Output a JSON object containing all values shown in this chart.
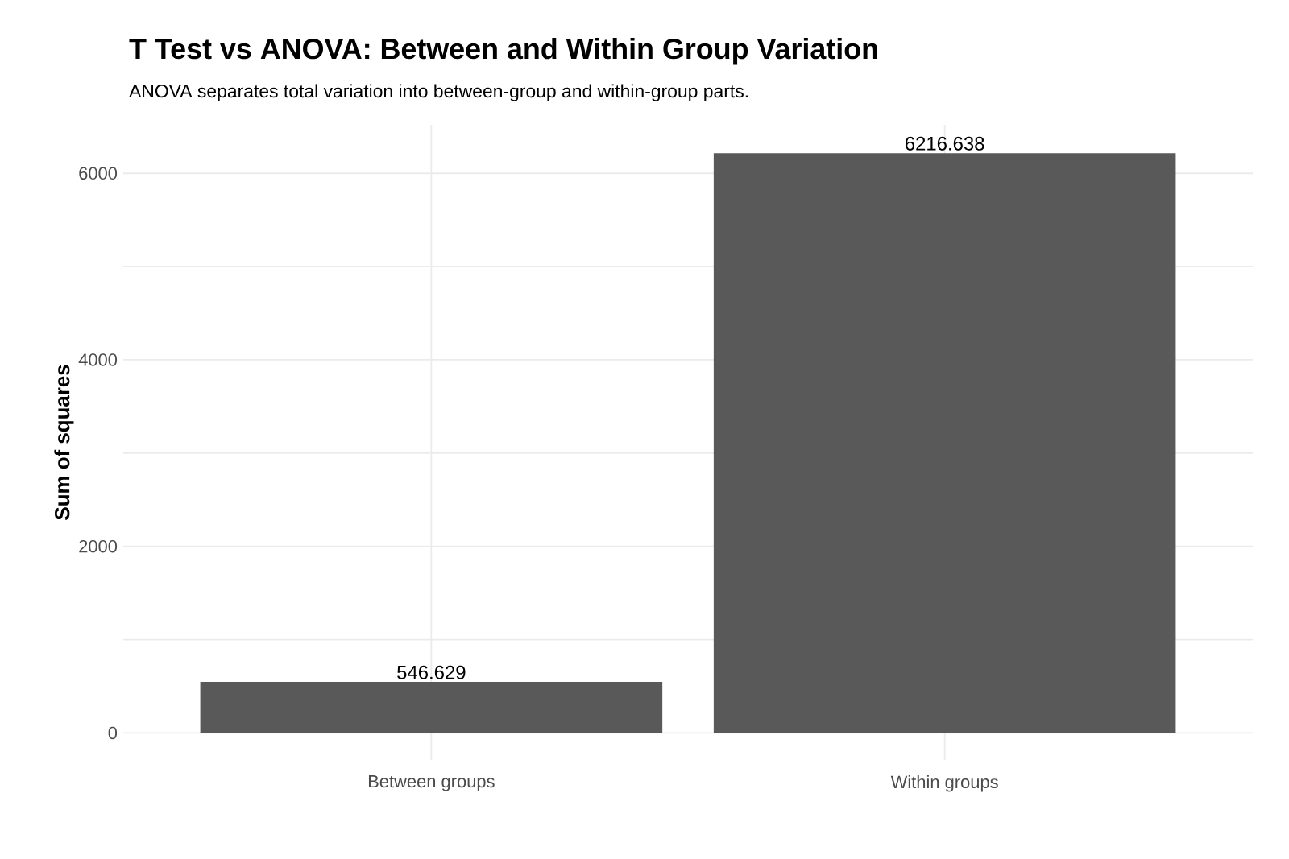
{
  "chart_data": {
    "type": "bar",
    "title": "T Test vs ANOVA: Between and Within Group Variation",
    "subtitle": "ANOVA separates total variation into between-group and within-group parts.",
    "ylabel": "Sum of squares",
    "categories": [
      "Between groups",
      "Within groups"
    ],
    "values": [
      546.629,
      6216.638
    ],
    "value_labels": [
      "546.629",
      "6216.638"
    ],
    "color": "#595959",
    "ylim": [
      -290,
      6520
    ],
    "yticks": [
      0,
      {
        "value": 1000,
        "label": null
      },
      2000,
      {
        "value": 3000,
        "label": null
      },
      4000,
      {
        "value": 5000,
        "label": null
      },
      6000
    ],
    "grid": true
  }
}
